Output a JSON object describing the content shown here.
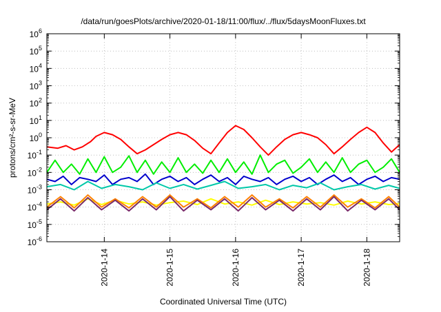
{
  "chart_data": {
    "type": "line",
    "title": "/data/run/goesPlots/archive/2020-01-18/11:00/flux/../flux/5daysMoonFluxes.txt",
    "xlabel": "Coordinated Universal Time (UTC)",
    "ylabel": "protons/cm²-s-sr-MeV",
    "y_scale": "log",
    "ylim": [
      1e-06,
      1000000.0
    ],
    "y_tick_exponents": [
      -6,
      -5,
      -4,
      -3,
      -2,
      -1,
      0,
      1,
      2,
      3,
      4,
      5,
      6
    ],
    "y_tick_base": "10",
    "xlim": [
      "2020-01-13T03:00",
      "2020-01-18T12:00"
    ],
    "x_ticks": [
      {
        "label": "2020-1-14",
        "date": "2020-01-14T00:00"
      },
      {
        "label": "2020-1-15",
        "date": "2020-01-15T00:00"
      },
      {
        "label": "2020-1-16",
        "date": "2020-01-16T00:00"
      },
      {
        "label": "2020-1-17",
        "date": "2020-01-17T00:00"
      },
      {
        "label": "2020-1-18",
        "date": "2020-01-18T00:00"
      }
    ],
    "grid": true,
    "legend": "none",
    "series": [
      {
        "color": "#ff0000",
        "x": [
          "2020-01-13T03:00",
          "2020-01-13T07:00",
          "2020-01-13T10:00",
          "2020-01-13T13:00",
          "2020-01-13T16:00",
          "2020-01-13T19:00",
          "2020-01-13T21:00",
          "2020-01-14T00:00",
          "2020-01-14T03:00",
          "2020-01-14T06:00",
          "2020-01-14T09:00",
          "2020-01-14T12:00",
          "2020-01-14T15:00",
          "2020-01-14T18:00",
          "2020-01-14T21:00",
          "2020-01-15T00:00",
          "2020-01-15T03:00",
          "2020-01-15T06:00",
          "2020-01-15T09:00",
          "2020-01-15T12:00",
          "2020-01-15T15:00",
          "2020-01-15T18:00",
          "2020-01-15T21:00",
          "2020-01-16T00:00",
          "2020-01-16T03:00",
          "2020-01-16T06:00",
          "2020-01-16T09:00",
          "2020-01-16T12:00",
          "2020-01-16T15:00",
          "2020-01-16T18:00",
          "2020-01-16T21:00",
          "2020-01-17T00:00",
          "2020-01-17T03:00",
          "2020-01-17T06:00",
          "2020-01-17T09:00",
          "2020-01-17T12:00",
          "2020-01-17T15:00",
          "2020-01-17T18:00",
          "2020-01-17T21:00",
          "2020-01-18T00:00",
          "2020-01-18T03:00",
          "2020-01-18T06:00",
          "2020-01-18T09:00",
          "2020-01-18T12:00"
        ],
        "y": [
          0.3,
          0.25,
          0.35,
          0.2,
          0.3,
          0.6,
          1.2,
          2.0,
          1.5,
          0.8,
          0.3,
          0.12,
          0.2,
          0.4,
          0.8,
          1.5,
          2.0,
          1.5,
          0.7,
          0.25,
          0.12,
          0.5,
          2.0,
          5.0,
          3.0,
          1.0,
          0.3,
          0.1,
          0.3,
          0.8,
          1.5,
          2.0,
          1.5,
          1.0,
          0.4,
          0.12,
          0.3,
          0.8,
          2.0,
          4.0,
          2.0,
          0.5,
          0.15,
          0.4
        ]
      },
      {
        "color": "#00ee00",
        "x": [
          "2020-01-13T03:00",
          "2020-01-13T06:00",
          "2020-01-13T09:00",
          "2020-01-13T12:00",
          "2020-01-13T15:00",
          "2020-01-13T18:00",
          "2020-01-13T21:00",
          "2020-01-14T00:00",
          "2020-01-14T03:00",
          "2020-01-14T06:00",
          "2020-01-14T09:00",
          "2020-01-14T12:00",
          "2020-01-14T15:00",
          "2020-01-14T18:00",
          "2020-01-14T21:00",
          "2020-01-15T00:00",
          "2020-01-15T03:00",
          "2020-01-15T06:00",
          "2020-01-15T09:00",
          "2020-01-15T12:00",
          "2020-01-15T15:00",
          "2020-01-15T18:00",
          "2020-01-15T21:00",
          "2020-01-16T00:00",
          "2020-01-16T03:00",
          "2020-01-16T06:00",
          "2020-01-16T09:00",
          "2020-01-16T12:00",
          "2020-01-16T15:00",
          "2020-01-16T18:00",
          "2020-01-16T21:00",
          "2020-01-17T00:00",
          "2020-01-17T03:00",
          "2020-01-17T06:00",
          "2020-01-17T09:00",
          "2020-01-17T12:00",
          "2020-01-17T15:00",
          "2020-01-17T18:00",
          "2020-01-17T21:00",
          "2020-01-18T00:00",
          "2020-01-18T03:00",
          "2020-01-18T06:00",
          "2020-01-18T09:00",
          "2020-01-18T12:00"
        ],
        "y": [
          0.01,
          0.05,
          0.01,
          0.03,
          0.008,
          0.06,
          0.01,
          0.08,
          0.01,
          0.02,
          0.09,
          0.01,
          0.05,
          0.008,
          0.04,
          0.01,
          0.07,
          0.01,
          0.03,
          0.009,
          0.05,
          0.01,
          0.06,
          0.01,
          0.04,
          0.008,
          0.1,
          0.01,
          0.03,
          0.05,
          0.009,
          0.02,
          0.06,
          0.01,
          0.04,
          0.01,
          0.07,
          0.01,
          0.03,
          0.05,
          0.01,
          0.02,
          0.06,
          0.01
        ]
      },
      {
        "color": "#0000cc",
        "x": [
          "2020-01-13T03:00",
          "2020-01-13T06:00",
          "2020-01-13T09:00",
          "2020-01-13T12:00",
          "2020-01-13T15:00",
          "2020-01-13T18:00",
          "2020-01-13T21:00",
          "2020-01-14T00:00",
          "2020-01-14T03:00",
          "2020-01-14T06:00",
          "2020-01-14T09:00",
          "2020-01-14T12:00",
          "2020-01-14T15:00",
          "2020-01-14T18:00",
          "2020-01-14T21:00",
          "2020-01-15T00:00",
          "2020-01-15T03:00",
          "2020-01-15T06:00",
          "2020-01-15T09:00",
          "2020-01-15T12:00",
          "2020-01-15T15:00",
          "2020-01-15T18:00",
          "2020-01-15T21:00",
          "2020-01-16T00:00",
          "2020-01-16T03:00",
          "2020-01-16T06:00",
          "2020-01-16T09:00",
          "2020-01-16T12:00",
          "2020-01-16T15:00",
          "2020-01-16T18:00",
          "2020-01-16T21:00",
          "2020-01-17T00:00",
          "2020-01-17T03:00",
          "2020-01-17T06:00",
          "2020-01-17T09:00",
          "2020-01-17T12:00",
          "2020-01-17T15:00",
          "2020-01-17T18:00",
          "2020-01-17T21:00",
          "2020-01-18T00:00",
          "2020-01-18T03:00",
          "2020-01-18T06:00",
          "2020-01-18T09:00",
          "2020-01-18T12:00"
        ],
        "y": [
          0.004,
          0.003,
          0.006,
          0.002,
          0.005,
          0.004,
          0.003,
          0.007,
          0.002,
          0.004,
          0.005,
          0.003,
          0.008,
          0.002,
          0.004,
          0.006,
          0.003,
          0.005,
          0.002,
          0.004,
          0.007,
          0.003,
          0.005,
          0.002,
          0.006,
          0.004,
          0.003,
          0.005,
          0.002,
          0.004,
          0.006,
          0.003,
          0.005,
          0.002,
          0.004,
          0.007,
          0.003,
          0.005,
          0.002,
          0.004,
          0.006,
          0.003,
          0.005,
          0.004
        ]
      },
      {
        "color": "#00c8a8",
        "x": [
          "2020-01-13T03:00",
          "2020-01-13T08:00",
          "2020-01-13T13:00",
          "2020-01-13T18:00",
          "2020-01-13T23:00",
          "2020-01-14T04:00",
          "2020-01-14T09:00",
          "2020-01-14T14:00",
          "2020-01-14T19:00",
          "2020-01-15T00:00",
          "2020-01-15T05:00",
          "2020-01-15T10:00",
          "2020-01-15T15:00",
          "2020-01-15T20:00",
          "2020-01-16T01:00",
          "2020-01-16T06:00",
          "2020-01-16T11:00",
          "2020-01-16T16:00",
          "2020-01-16T21:00",
          "2020-01-17T02:00",
          "2020-01-17T07:00",
          "2020-01-17T12:00",
          "2020-01-17T17:00",
          "2020-01-17T22:00",
          "2020-01-18T03:00",
          "2020-01-18T08:00",
          "2020-01-18T12:00"
        ],
        "y": [
          0.0015,
          0.002,
          0.001,
          0.003,
          0.0012,
          0.002,
          0.0015,
          0.001,
          0.0025,
          0.0012,
          0.002,
          0.0011,
          0.0018,
          0.003,
          0.0012,
          0.0015,
          0.002,
          0.001,
          0.0018,
          0.0013,
          0.0025,
          0.001,
          0.0015,
          0.002,
          0.0011,
          0.0018,
          0.0012
        ]
      },
      {
        "color": "#ffff00",
        "x": [
          "2020-01-13T03:00",
          "2020-01-13T08:00",
          "2020-01-13T13:00",
          "2020-01-13T18:00",
          "2020-01-13T23:00",
          "2020-01-14T04:00",
          "2020-01-14T09:00",
          "2020-01-14T14:00",
          "2020-01-14T19:00",
          "2020-01-15T00:00",
          "2020-01-15T05:00",
          "2020-01-15T10:00",
          "2020-01-15T15:00",
          "2020-01-15T20:00",
          "2020-01-16T01:00",
          "2020-01-16T06:00",
          "2020-01-16T11:00",
          "2020-01-16T16:00",
          "2020-01-16T21:00",
          "2020-01-17T02:00",
          "2020-01-17T07:00",
          "2020-01-17T12:00",
          "2020-01-17T17:00",
          "2020-01-17T22:00",
          "2020-01-18T03:00",
          "2020-01-18T08:00",
          "2020-01-18T12:00"
        ],
        "y": [
          0.00015,
          0.0002,
          0.00013,
          0.0003,
          0.00014,
          0.00025,
          0.00015,
          0.0002,
          0.00013,
          0.00018,
          0.00022,
          0.00014,
          0.0003,
          0.00015,
          0.0002,
          0.00013,
          0.00025,
          0.00014,
          0.0002,
          0.00015,
          0.00018,
          0.00013,
          0.00022,
          0.00015,
          0.0002,
          0.00014,
          0.00016
        ]
      },
      {
        "color": "#ff8000",
        "x": [
          "2020-01-13T03:00",
          "2020-01-13T08:00",
          "2020-01-13T13:00",
          "2020-01-13T18:00",
          "2020-01-13T23:00",
          "2020-01-14T04:00",
          "2020-01-14T09:00",
          "2020-01-14T14:00",
          "2020-01-14T19:00",
          "2020-01-15T00:00",
          "2020-01-15T05:00",
          "2020-01-15T10:00",
          "2020-01-15T15:00",
          "2020-01-15T20:00",
          "2020-01-16T01:00",
          "2020-01-16T06:00",
          "2020-01-16T11:00",
          "2020-01-16T16:00",
          "2020-01-16T21:00",
          "2020-01-17T02:00",
          "2020-01-17T07:00",
          "2020-01-17T12:00",
          "2020-01-17T17:00",
          "2020-01-17T22:00",
          "2020-01-18T03:00",
          "2020-01-18T08:00",
          "2020-01-18T12:00"
        ],
        "y": [
          0.0001,
          0.0004,
          9e-05,
          0.0005,
          0.0001,
          0.0003,
          9e-05,
          0.0004,
          0.0001,
          0.0005,
          0.0001,
          0.0003,
          9e-05,
          0.0004,
          0.0001,
          0.0005,
          0.0001,
          0.0003,
          9e-05,
          0.0004,
          0.0001,
          0.0005,
          0.0001,
          0.0003,
          9e-05,
          0.0004,
          0.0001
        ]
      },
      {
        "color": "#7a2a6a",
        "x": [
          "2020-01-13T03:00",
          "2020-01-13T08:00",
          "2020-01-13T13:00",
          "2020-01-13T18:00",
          "2020-01-13T23:00",
          "2020-01-14T04:00",
          "2020-01-14T09:00",
          "2020-01-14T14:00",
          "2020-01-14T19:00",
          "2020-01-15T00:00",
          "2020-01-15T05:00",
          "2020-01-15T10:00",
          "2020-01-15T15:00",
          "2020-01-15T20:00",
          "2020-01-16T01:00",
          "2020-01-16T06:00",
          "2020-01-16T11:00",
          "2020-01-16T16:00",
          "2020-01-16T21:00",
          "2020-01-17T02:00",
          "2020-01-17T07:00",
          "2020-01-17T12:00",
          "2020-01-17T17:00",
          "2020-01-17T22:00",
          "2020-01-18T03:00",
          "2020-01-18T08:00",
          "2020-01-18T12:00"
        ],
        "y": [
          7e-05,
          0.0003,
          6e-05,
          0.00035,
          7e-05,
          0.00025,
          6e-05,
          0.0003,
          7e-05,
          0.0004,
          6e-05,
          0.00025,
          7e-05,
          0.0003,
          6e-05,
          0.00035,
          7e-05,
          0.00025,
          6e-05,
          0.0003,
          7e-05,
          0.0004,
          6e-05,
          0.00025,
          7e-05,
          0.0003,
          7e-05
        ]
      }
    ]
  }
}
